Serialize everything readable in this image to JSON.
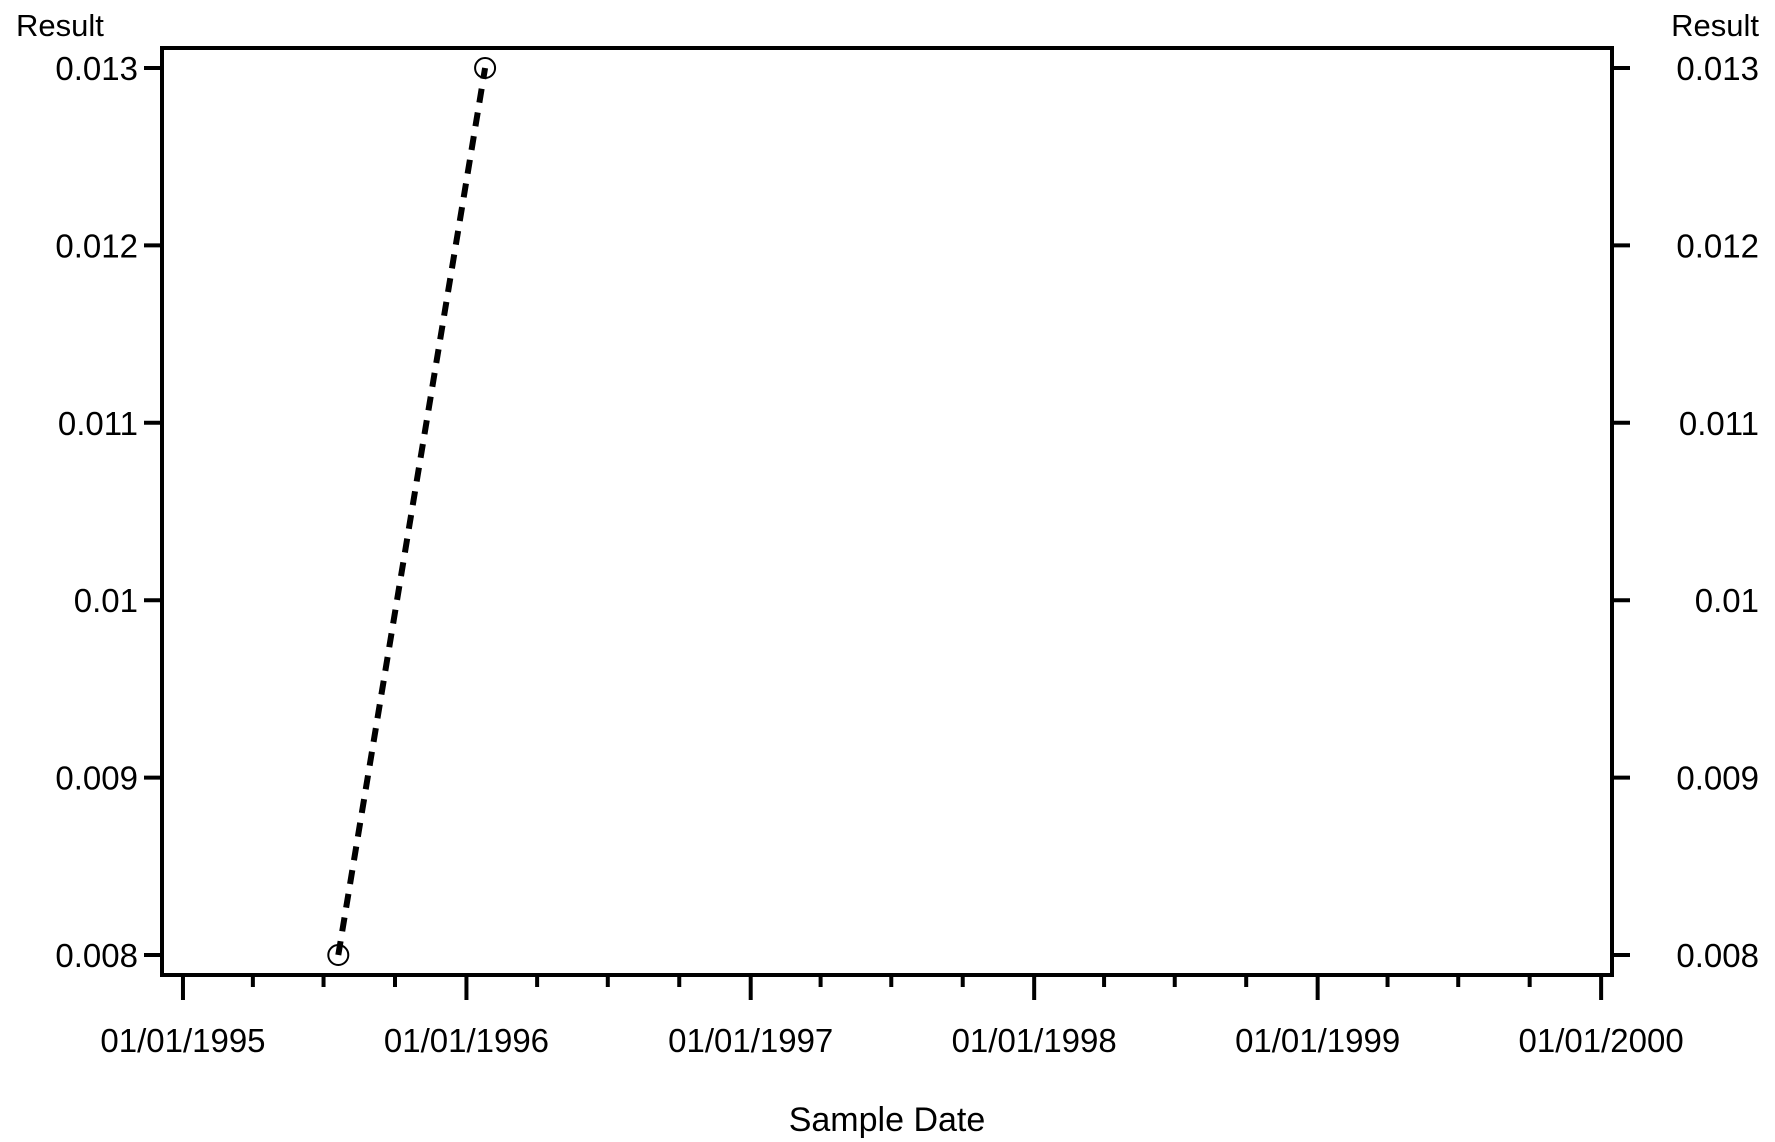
{
  "chart_data": {
    "type": "line",
    "title": "",
    "xlabel": "Sample Date",
    "ylabel_left": "Result",
    "ylabel_right": "Result",
    "x_ticks": [
      "01/01/1995",
      "01/01/1996",
      "01/01/1997",
      "01/01/1998",
      "01/01/1999",
      "01/01/2000"
    ],
    "y_ticks": [
      "0.008",
      "0.009",
      "0.01",
      "0.011",
      "0.012",
      "0.013"
    ],
    "xlim": [
      "1994-12-05",
      "2000-01-15"
    ],
    "ylim": [
      0.008,
      0.013
    ],
    "grid": false,
    "series": [
      {
        "points": [
          {
            "x": "1995-07-20",
            "y": 0.008
          },
          {
            "x": "1996-01-25",
            "y": 0.013
          }
        ],
        "line_style": "dashed",
        "marker": "open-circle",
        "color": "#000000"
      }
    ]
  }
}
